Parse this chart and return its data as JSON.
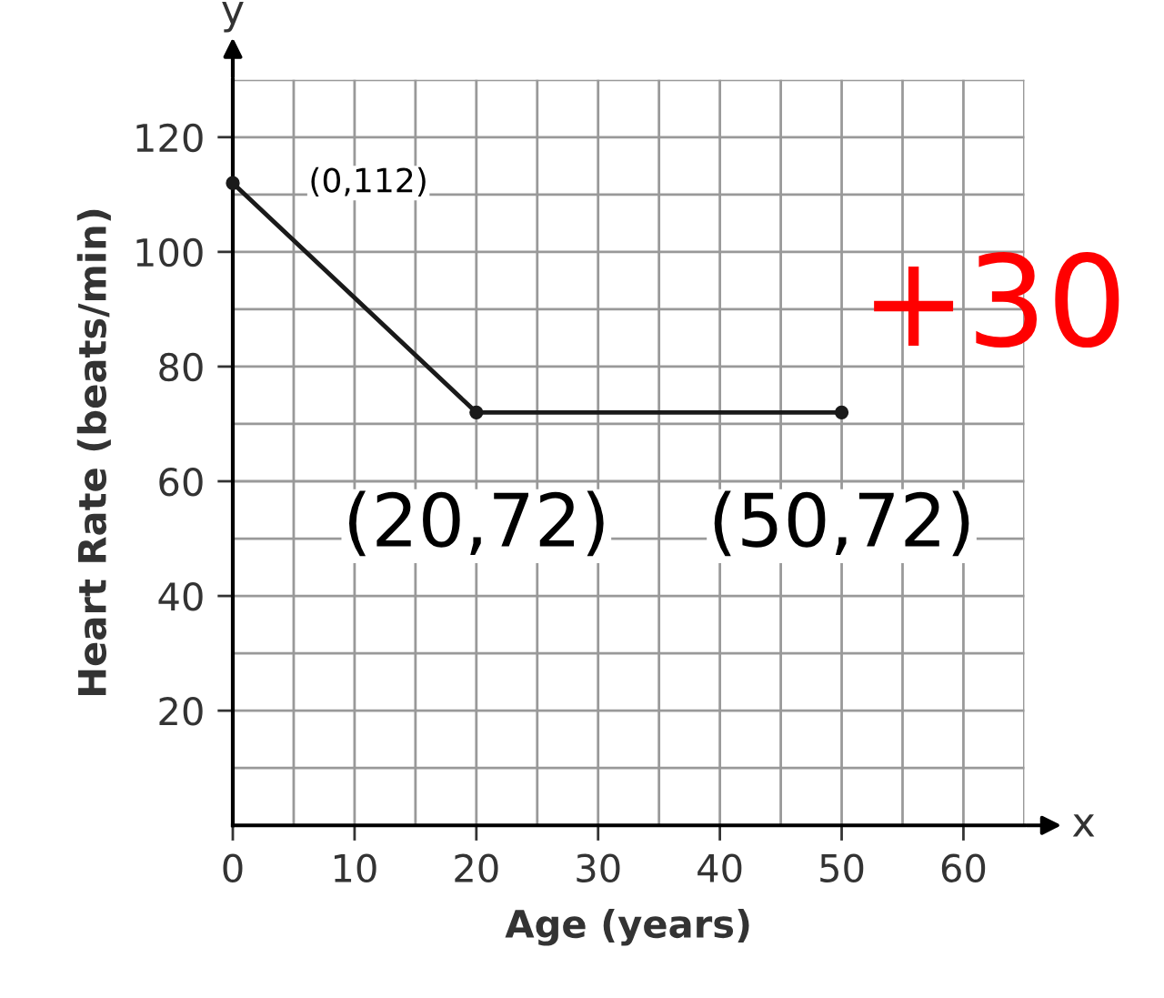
{
  "chart_data": {
    "type": "line",
    "xlabel": "Age (years)",
    "ylabel": "Heart Rate (beats/min)",
    "x": [
      0,
      20,
      50
    ],
    "series": [
      {
        "color": "#1a1a1a",
        "values": [
          112,
          72,
          72
        ]
      }
    ],
    "marker": "circle",
    "line_style": "solid",
    "xlim": [
      0,
      65
    ],
    "ylim": [
      0,
      130
    ],
    "xticks": [
      0,
      10,
      20,
      30,
      40,
      50,
      60
    ],
    "yticks": [
      20,
      40,
      60,
      80,
      100,
      120
    ],
    "grid": true,
    "annotations": [
      {
        "text": "(0,112)",
        "x": 0,
        "y": 112
      },
      {
        "text": "(20,72)",
        "x": 20,
        "y": 72
      },
      {
        "text": "(50,72)",
        "x": 50,
        "y": 72
      },
      "+30",
      "y",
      "x"
    ]
  }
}
